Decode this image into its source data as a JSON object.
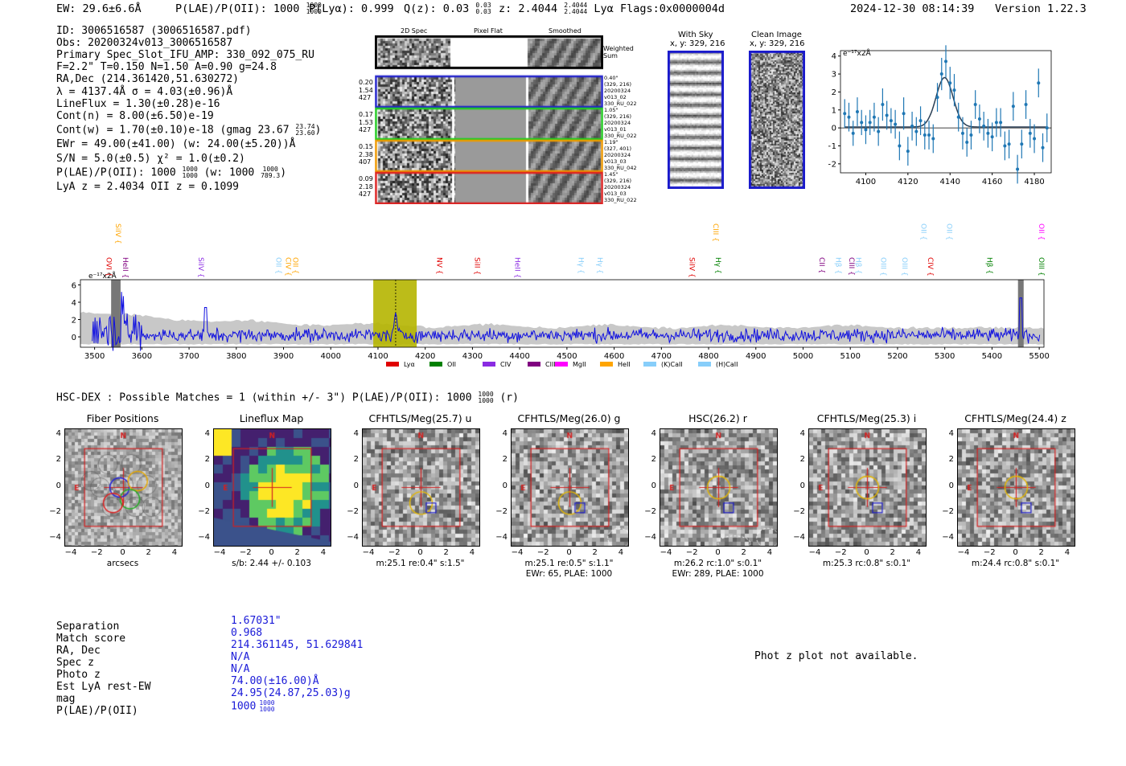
{
  "header": {
    "ew": "EW: 29.6±6.6Å",
    "plae": "P(LAE)/P(OII): 1000",
    "plae_hi": "1000",
    "plae_lo": "1000",
    "plya": "P(Lyα): 0.999",
    "qz": "Q(z): 0.03",
    "qz_hi": "0.03",
    "qz_lo": "0.03",
    "z": "z: 2.4044",
    "z_hi": "2.4044",
    "z_lo": "2.4044",
    "z_line": "Lyα",
    "flags": "Flags:0x0000004d",
    "timestamp": "2024-12-30 08:14:39",
    "version": "Version 1.22.3"
  },
  "info": {
    "id": "ID: 3006516587 (3006516587.pdf)",
    "obs": "Obs: 20200324v013_3006516587",
    "primary": "Primary Spec_Slot_IFU_AMP: 330_092_075_RU",
    "fwhm": "F=2.2\"  T=0.150  N=1.50  A=0.90  g=24.8",
    "radec": "RA,Dec (214.361420,51.630272)",
    "lam": "λ = 4137.4Å   σ = 4.03(±0.96)Å",
    "lineflux": "LineFlux = 1.30(±0.28)e-16",
    "contn": "Cont(n) = 8.00(±6.50)e-19",
    "contw": "Cont(w) = 1.70(±0.10)e-18 (gmag 23.67",
    "contw_hi": "23.74",
    "contw_lo": "23.60",
    "contw_end": ")",
    "ewr": "EWr = 49.00(±41.00) (w: 24.00(±5.20))Å",
    "sn": "S/N = 5.0(±0.5)  χ² = 1.0(±0.2)",
    "plae": "P(LAE)/P(OII): 1000",
    "plae_hi": "1000",
    "plae_lo": "1000",
    "plae_w": "(w: 1000",
    "plae_w_hi": "1000",
    "plae_w_lo": "789.3",
    "plae_w_end": ")",
    "lyaz": "LyA z = 2.4034   OII z = 0.1099"
  },
  "cutouts": {
    "col_labels": [
      "2D Spec",
      "Pixel Flat",
      "Smoothed"
    ],
    "weighted": "Weighted\nSum",
    "rows": [
      {
        "left": [
          "0.20",
          "1.54",
          "427"
        ],
        "right": [
          "0.40\"",
          "(329, 216)",
          "20200324",
          "v013_02",
          "330_RU_022"
        ],
        "color": "#2222cc"
      },
      {
        "left": [
          "0.17",
          "1.53",
          "427"
        ],
        "right": [
          "1.05\"",
          "(329, 216)",
          "20200324",
          "v013_01",
          "330_RU_022"
        ],
        "color": "#22cc22"
      },
      {
        "left": [
          "0.15",
          "2.38",
          "407"
        ],
        "right": [
          "1.19\"",
          "(327, 401)",
          "20200324",
          "v013_03",
          "330_RU_042"
        ],
        "color": "#ee9900"
      },
      {
        "left": [
          "0.09",
          "2.18",
          "427"
        ],
        "right": [
          "1.45\"",
          "(329, 216)",
          "20200324",
          "v013_03",
          "330_RU_022"
        ],
        "color": "#dd2222"
      }
    ],
    "with_sky": "With Sky",
    "with_sky_xy": "x, y: 329, 216",
    "clean": "Clean Image",
    "clean_xy": "x, y: 329, 216"
  },
  "zoom_chart": {
    "ylabel": "e⁻¹⁷x2Å"
  },
  "chart_data": [
    {
      "type": "scatter",
      "title": "Zoomed line fit",
      "ylabel": "e-17 x2Å",
      "xlim": [
        4088,
        4188
      ],
      "ylim": [
        -2.5,
        4.3
      ],
      "xticks": [
        4100,
        4120,
        4140,
        4160,
        4180
      ],
      "yticks": [
        -2,
        -1,
        0,
        1,
        2,
        3,
        4
      ],
      "x": [
        4090,
        4092,
        4094,
        4096,
        4098,
        4100,
        4102,
        4104,
        4106,
        4108,
        4110,
        4112,
        4114,
        4116,
        4118,
        4120,
        4122,
        4124,
        4126,
        4128,
        4130,
        4132,
        4134,
        4136,
        4138,
        4140,
        4142,
        4144,
        4146,
        4148,
        4150,
        4152,
        4154,
        4156,
        4158,
        4160,
        4162,
        4164,
        4166,
        4168,
        4170,
        4172,
        4174,
        4176,
        4178,
        4180,
        4182,
        4184,
        4186
      ],
      "y": [
        0.8,
        0.6,
        -0.3,
        0.9,
        0.3,
        -0.1,
        0.3,
        0.6,
        -0.2,
        1.3,
        0.7,
        0.4,
        0.2,
        -1.0,
        0.8,
        -1.3,
        0.1,
        -0.2,
        0.4,
        -0.4,
        -0.4,
        -0.6,
        1.7,
        3.0,
        3.7,
        2.5,
        2.1,
        0.6,
        -0.3,
        -0.8,
        -0.4,
        1.3,
        0.5,
        0.1,
        -0.3,
        -0.5,
        0.3,
        0.3,
        -1.0,
        -0.9,
        1.2,
        -2.3,
        -0.9,
        1.3,
        -0.3,
        -0.6,
        2.5,
        -1.1,
        0.0
      ],
      "err": [
        0.8,
        0.8,
        0.7,
        0.8,
        0.7,
        0.8,
        0.7,
        0.8,
        0.8,
        0.9,
        0.8,
        0.7,
        0.8,
        0.8,
        0.9,
        0.8,
        0.8,
        0.8,
        0.8,
        0.8,
        0.8,
        0.8,
        0.8,
        0.9,
        0.9,
        0.9,
        0.9,
        0.8,
        0.9,
        0.8,
        0.8,
        0.8,
        0.8,
        0.8,
        0.8,
        0.8,
        0.8,
        0.8,
        0.8,
        0.8,
        0.8,
        0.8,
        0.8,
        0.8,
        0.8,
        0.8,
        0.8,
        0.8,
        0.8
      ],
      "fit": {
        "center": 4137.4,
        "sigma": 4.03,
        "amp": 2.75,
        "cont": 0.05
      }
    },
    {
      "type": "line",
      "title": "Full spectrum",
      "ylabel": "e-17 x2Å",
      "xlim": [
        3470,
        5510
      ],
      "ylim": [
        -1.2,
        6.6
      ],
      "xticks": [
        3500,
        3600,
        3700,
        3800,
        3900,
        4000,
        4100,
        4200,
        4300,
        4400,
        4500,
        4600,
        4700,
        4800,
        4900,
        5000,
        5100,
        5200,
        5300,
        5400,
        5500
      ],
      "yticks": [
        0,
        2,
        4,
        6
      ],
      "highlight": {
        "from": 4090,
        "to": 4182,
        "line": 4137.4
      },
      "masked": [
        [
          3535,
          3555
        ],
        [
          5455,
          5467
        ]
      ],
      "legend": [
        {
          "name": "Lyα",
          "color": "#e00000"
        },
        {
          "name": "OII",
          "color": "#008000"
        },
        {
          "name": "CIV",
          "color": "#8a2be2"
        },
        {
          "name": "CIII",
          "color": "#800080"
        },
        {
          "name": "MgII",
          "color": "#ff00ff"
        },
        {
          "name": "HeII",
          "color": "#ffa500"
        },
        {
          "name": "(K)CaII",
          "color": "#87cefa"
        },
        {
          "name": "(H)CaII",
          "color": "#87cefa"
        }
      ],
      "lines_top": [
        {
          "label": "SiIV",
          "x": 3545,
          "color": "#ffa500"
        },
        {
          "label": "CIII",
          "x": 4810,
          "color": "#ffa500"
        },
        {
          "label": "OII",
          "x": 5250,
          "color": "#87cefa"
        },
        {
          "label": "OII",
          "x": 5305,
          "color": "#87cefa"
        },
        {
          "label": "OII",
          "x": 5500,
          "color": "#ff00ff"
        }
      ],
      "lines_mid": [
        {
          "label": "OVI",
          "x": 3525,
          "color": "#e00000"
        },
        {
          "label": "HeII",
          "x": 3560,
          "color": "#800080"
        },
        {
          "label": "SiIV",
          "x": 3720,
          "color": "#8a2be2"
        },
        {
          "label": "OII",
          "x": 3885,
          "color": "#87cefa"
        },
        {
          "label": "CIV",
          "x": 3905,
          "color": "#ffa500"
        },
        {
          "label": "OII",
          "x": 3920,
          "color": "#ffa500"
        },
        {
          "label": "NV",
          "x": 4225,
          "color": "#e00000"
        },
        {
          "label": "SiII",
          "x": 4305,
          "color": "#e00000"
        },
        {
          "label": "HeII",
          "x": 4390,
          "color": "#8a2be2"
        },
        {
          "label": "Hγ",
          "x": 4525,
          "color": "#87cefa"
        },
        {
          "label": "Hγ",
          "x": 4565,
          "color": "#87cefa"
        },
        {
          "label": "SiIV",
          "x": 4760,
          "color": "#e00000"
        },
        {
          "label": "Hγ",
          "x": 4815,
          "color": "#008000"
        },
        {
          "label": "CII",
          "x": 5035,
          "color": "#800080"
        },
        {
          "label": "Hβ",
          "x": 5070,
          "color": "#87cefa"
        },
        {
          "label": "CIII",
          "x": 5098,
          "color": "#800080"
        },
        {
          "label": "Hβ",
          "x": 5112,
          "color": "#87cefa"
        },
        {
          "label": "OIII",
          "x": 5165,
          "color": "#87cefa"
        },
        {
          "label": "OIII",
          "x": 5210,
          "color": "#87cefa"
        },
        {
          "label": "CIV",
          "x": 5265,
          "color": "#e00000"
        },
        {
          "label": "Hβ",
          "x": 5390,
          "color": "#008000"
        },
        {
          "label": "OIII",
          "x": 5500,
          "color": "#008000"
        }
      ]
    }
  ],
  "hsc": {
    "title": "HSC-DEX : Possible Matches = 1 (within +/- 3\")  P(LAE)/P(OII): 1000",
    "title_hi": "1000",
    "title_lo": "1000",
    "title_end": "(r)",
    "panels": [
      {
        "title": "Fiber Positions",
        "footer1": "arcsecs",
        "footer2": ""
      },
      {
        "title": "Lineflux Map",
        "footer1": "s/b: 2.44 +/- 0.103",
        "footer2": ""
      },
      {
        "title": "CFHTLS/Meg(25.7) u",
        "footer1": "m:25.1  re:0.4\"  s:1.5\"",
        "footer2": ""
      },
      {
        "title": "CFHTLS/Meg(26.0) g",
        "footer1": "m:25.1   re:0.5\"  s:1.1\"",
        "footer2": "EWr: 65, PLAE: 1000"
      },
      {
        "title": "HSC(26.2) r",
        "footer1": "m:26.2 rc:1.0\"  s:0.1\"",
        "footer2": "EWr: 289, PLAE: 1000"
      },
      {
        "title": "CFHTLS/Meg(25.3) i",
        "footer1": "m:25.3 rc:0.8\"  s:0.1\"",
        "footer2": ""
      },
      {
        "title": "CFHTLS/Meg(24.4) z",
        "footer1": "m:24.4 rc:0.8\"  s:0.1\"",
        "footer2": ""
      }
    ],
    "ticks": [
      "4",
      "2",
      "0",
      "−2",
      "−4"
    ],
    "xticks": [
      "−4",
      "−2",
      "0",
      "2",
      "4"
    ],
    "n": "N",
    "e": "E"
  },
  "match": {
    "labels": [
      "Separation",
      "Match score",
      "RA, Dec",
      "Spec z",
      "Photo z",
      "Est LyA rest-EW",
      "mag",
      "P(LAE)/P(OII)"
    ],
    "values": [
      "1.67031\"",
      "0.968",
      "214.361145, 51.629841",
      "N/A",
      "N/A",
      "74.00(±16.00)Å",
      "24.95(24.87,25.03)g",
      "1000"
    ],
    "plae_hi": "1000",
    "plae_lo": "1000"
  },
  "photz": "Phot z plot not available."
}
